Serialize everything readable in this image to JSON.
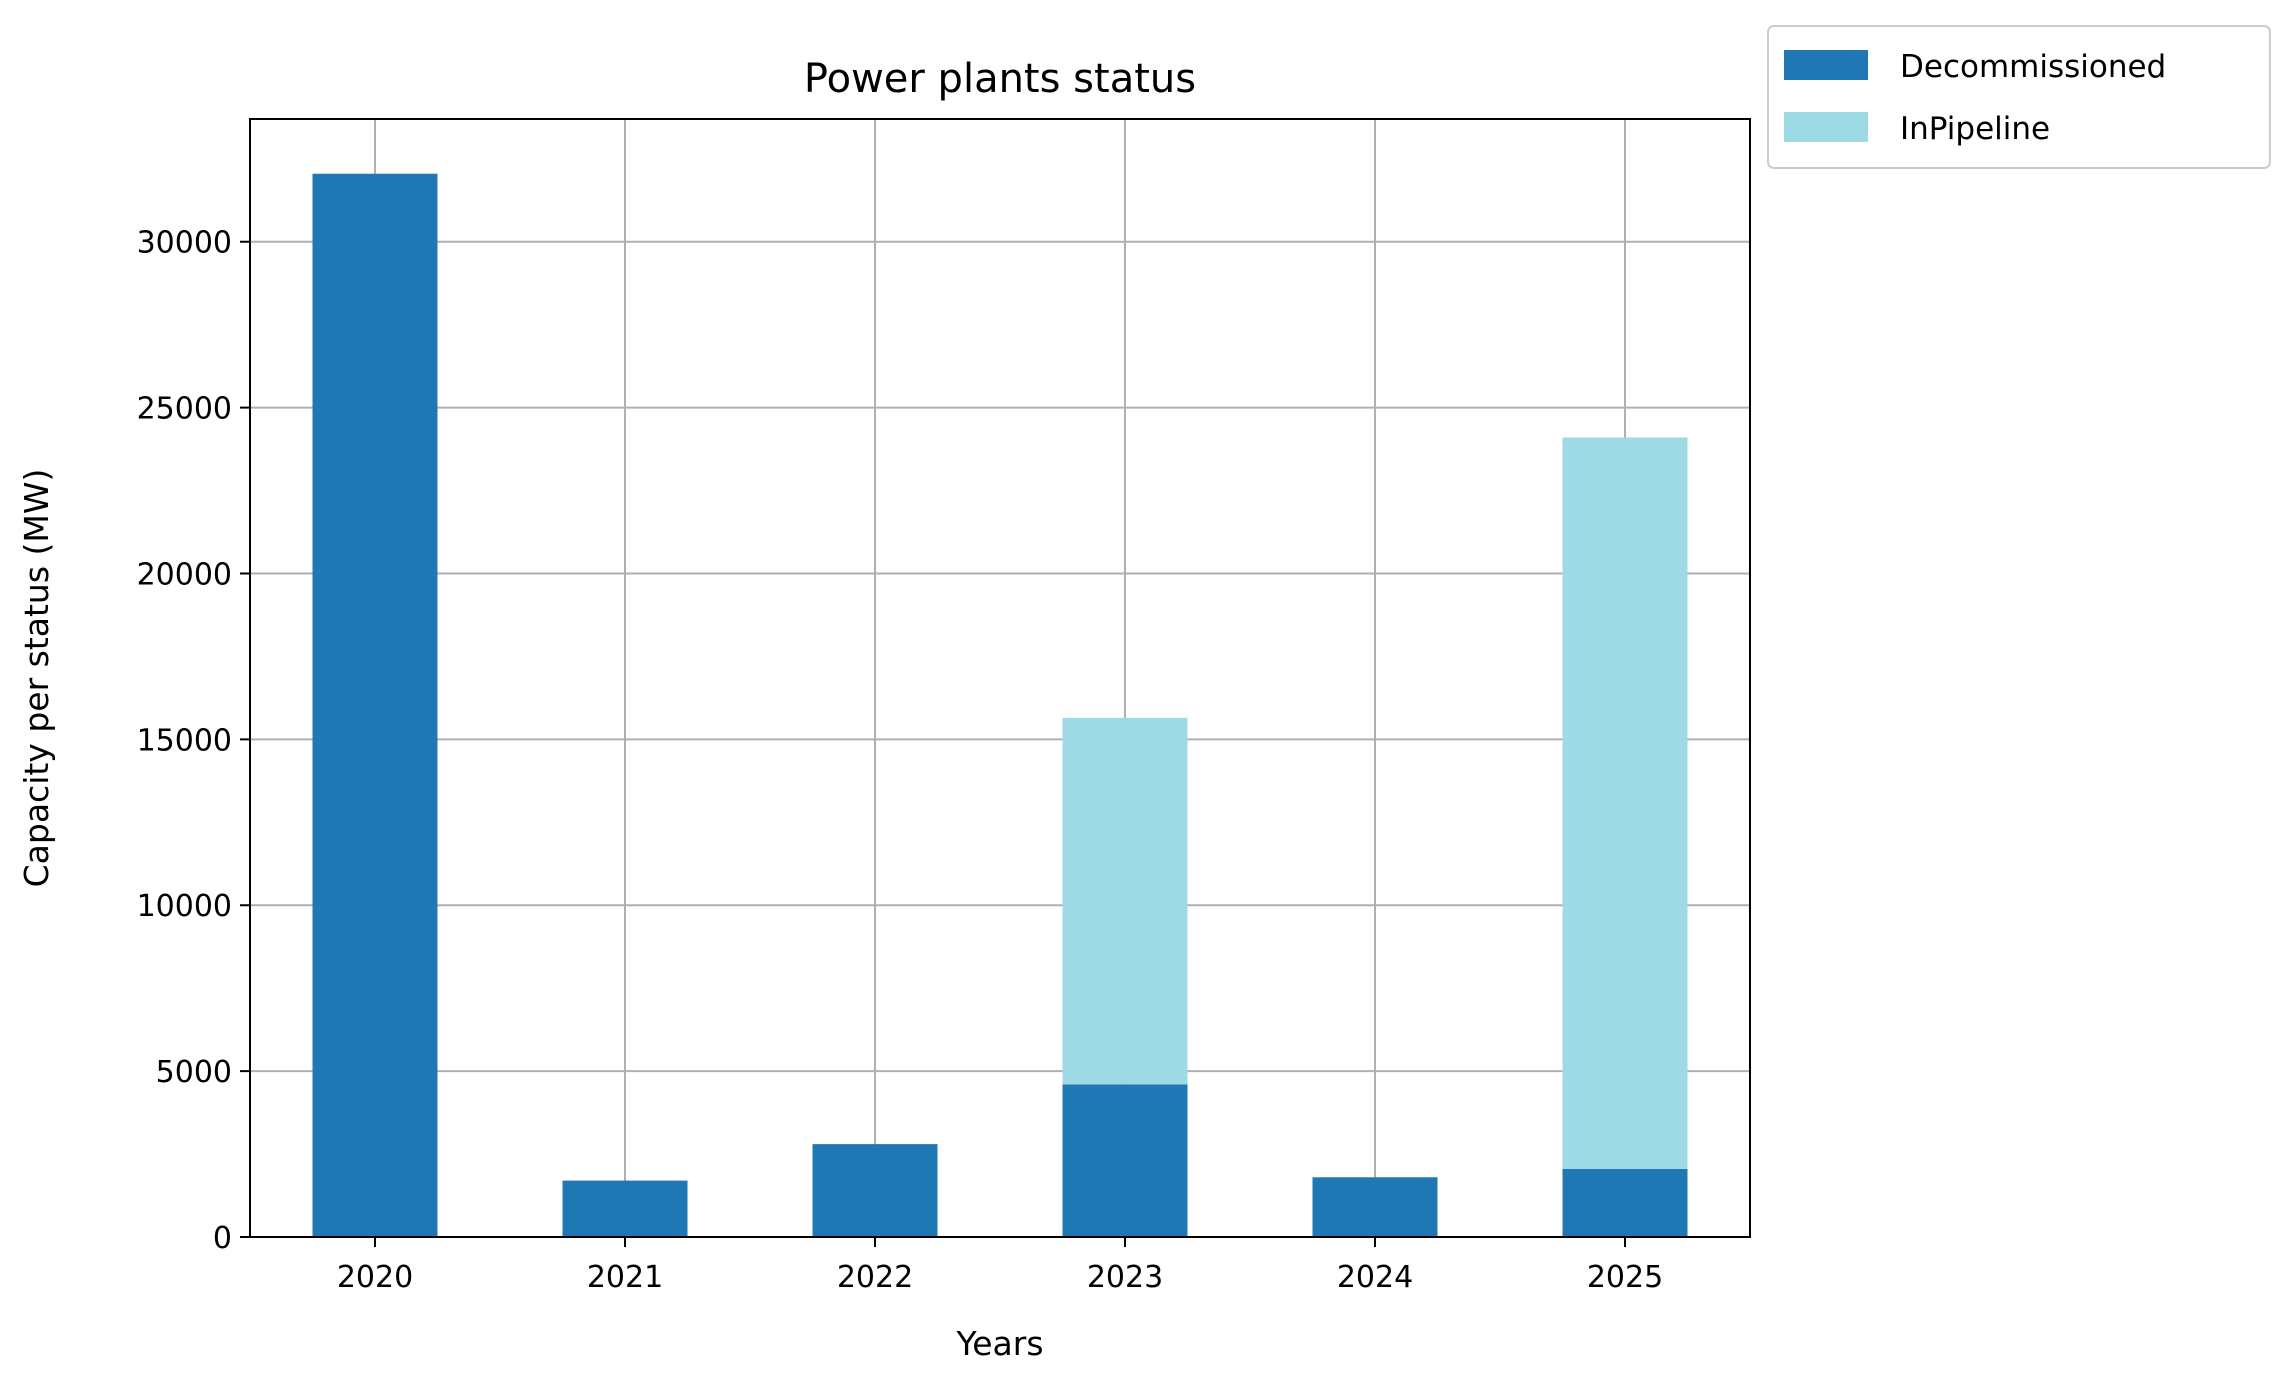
{
  "chart_data": {
    "type": "bar",
    "stacked": true,
    "title": "Power plants status",
    "xlabel": "Years",
    "ylabel": "Capacity per status (MW)",
    "categories": [
      "2020",
      "2021",
      "2022",
      "2023",
      "2024",
      "2025"
    ],
    "series": [
      {
        "name": "Decommissioned",
        "color": "#1f77b4",
        "values": [
          32050,
          1700,
          2800,
          4600,
          1800,
          2050
        ]
      },
      {
        "name": "InPipeline",
        "color": "#9edae5",
        "values": [
          0,
          0,
          0,
          11050,
          0,
          22050
        ]
      }
    ],
    "ylim": [
      0,
      33700
    ],
    "yticks": [
      0,
      5000,
      10000,
      15000,
      20000,
      25000,
      30000
    ],
    "grid": true,
    "legend_position": "outside-top-right"
  }
}
